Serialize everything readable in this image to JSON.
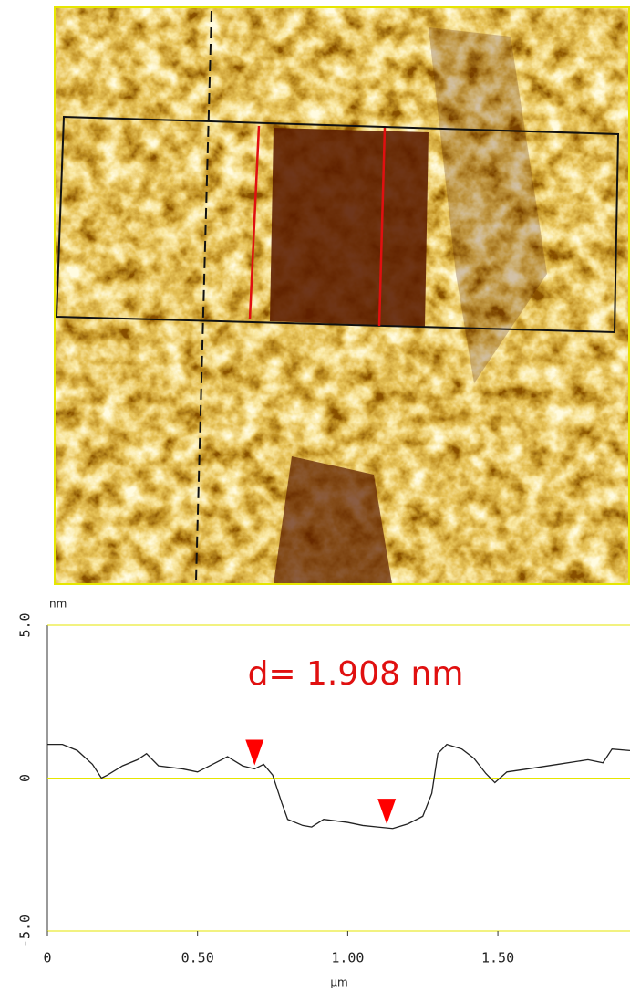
{
  "chart_data": {
    "type": "line",
    "annotation": "d= 1.908 nm",
    "y_unit": "nm",
    "x_unit": "µm",
    "xlim": [
      0,
      1.94
    ],
    "ylim": [
      -5,
      5
    ],
    "xticks": [
      0,
      {
        "value": 0.5,
        "label": "0.50"
      },
      {
        "value": 1,
        "label": "1.00"
      },
      {
        "value": 1.5,
        "label": "1.50"
      }
    ],
    "yticks": [
      {
        "value": 5,
        "label": "5.0"
      },
      0,
      {
        "value": -5,
        "label": "-5.0"
      }
    ],
    "grid": true,
    "grid_color": "#e6e600",
    "cursor_color": "#ff0000",
    "cursors_x": [
      0.69,
      1.13
    ],
    "series": [
      {
        "color": "#222222",
        "x": [
          0,
          0.05,
          0.1,
          0.15,
          0.18,
          0.2,
          0.25,
          0.3,
          0.33,
          0.37,
          0.45,
          0.5,
          0.55,
          0.6,
          0.65,
          0.69,
          0.72,
          0.75,
          0.78,
          0.8,
          0.85,
          0.88,
          0.92,
          1.0,
          1.05,
          1.1,
          1.15,
          1.2,
          1.25,
          1.28,
          1.3,
          1.33,
          1.38,
          1.42,
          1.46,
          1.49,
          1.53,
          1.6,
          1.7,
          1.8,
          1.85,
          1.88,
          1.94
        ],
        "values": [
          1.1,
          1.1,
          0.9,
          0.45,
          0,
          0.1,
          0.4,
          0.6,
          0.8,
          0.4,
          0.3,
          0.2,
          0.45,
          0.7,
          0.4,
          0.3,
          0.45,
          0.1,
          -0.8,
          -1.35,
          -1.55,
          -1.6,
          -1.35,
          -1.45,
          -1.55,
          -1.6,
          -1.65,
          -1.5,
          -1.25,
          -0.5,
          0.8,
          1.1,
          0.95,
          0.65,
          0.15,
          -0.15,
          0.2,
          0.3,
          0.45,
          0.6,
          0.5,
          0.95,
          0.9
        ]
      }
    ]
  }
}
